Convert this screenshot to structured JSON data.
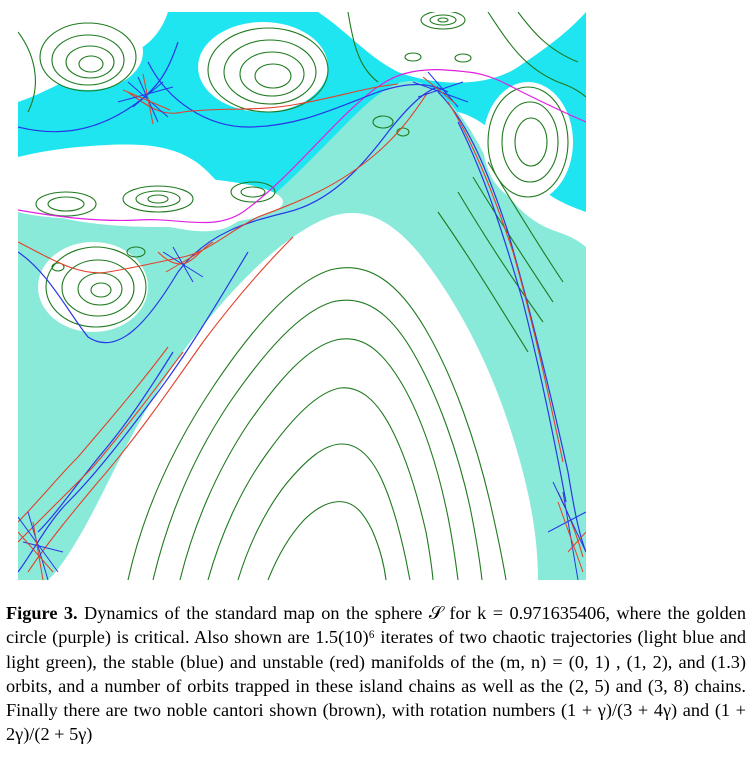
{
  "figure": {
    "label": "Figure 3.",
    "caption": "Dynamics of the standard map on the sphere 𝒮 for k = 0.971635406, where the golden circle (purple) is critical. Also shown are 1.5(10)⁶ iterates of two chaotic trajectories (light blue and light green), the stable (blue) and unstable (red) manifolds of the (m, n) = (0, 1) , (1, 2), and (1.3) orbits, and a number of orbits trapped in these island chains as well as the (2, 5) and (3, 8) chains. Finally there are two noble cantori shown (brown), with rotation numbers (1 + γ)/(3 + 4γ) and (1 + 2γ)/(2 + 5γ)"
  },
  "colors": {
    "light_blue_chaos": "#1ee5f0",
    "light_green_chaos": "#8aeada",
    "islands": "#1f7a1f",
    "golden_circle": "#e020e0",
    "stable_manifold": "#2838e6",
    "unstable_manifold": "#e2412a",
    "background": "#ffffff"
  }
}
